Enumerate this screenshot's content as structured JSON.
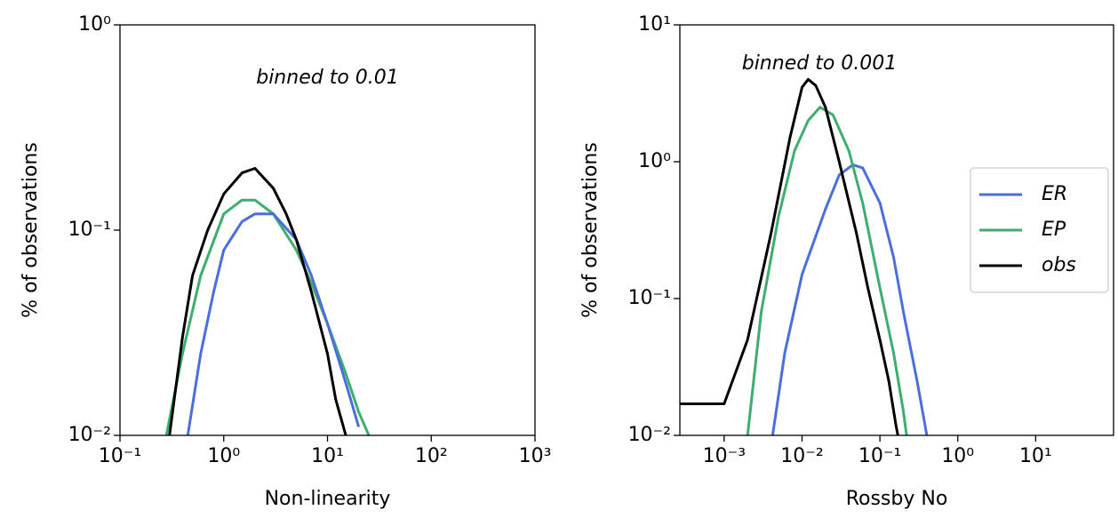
{
  "chart_data": [
    {
      "type": "line",
      "annotation": "binned to 0.01",
      "xlabel": "Non-linearity",
      "ylabel": "% of observations",
      "xscale": "log",
      "yscale": "log",
      "grid": false,
      "xlim": [
        0.1,
        1000
      ],
      "ylim": [
        0.01,
        1
      ],
      "xticks": [
        {
          "value": 0.1,
          "label": "10⁻¹"
        },
        {
          "value": 1,
          "label": "10⁰"
        },
        {
          "value": 10,
          "label": "10¹"
        },
        {
          "value": 100,
          "label": "10²"
        },
        {
          "value": 1000,
          "label": "10³"
        }
      ],
      "yticks": [
        {
          "value": 0.01,
          "label": "10⁻²"
        },
        {
          "value": 0.1,
          "label": "10⁻¹"
        },
        {
          "value": 1,
          "label": "10⁰"
        }
      ],
      "series": [
        {
          "color": "#3dae6e",
          "x": [
            0.28,
            0.4,
            0.6,
            1,
            1.5,
            2,
            3,
            5,
            7,
            10,
            15,
            20,
            25
          ],
          "values": [
            0.01,
            0.025,
            0.06,
            0.12,
            0.14,
            0.14,
            0.12,
            0.08,
            0.055,
            0.035,
            0.02,
            0.013,
            0.01
          ]
        },
        {
          "color": "#4a6fdc",
          "x": [
            0.45,
            0.6,
            0.8,
            1,
            1.5,
            2,
            3,
            5,
            7,
            10,
            15,
            20
          ],
          "values": [
            0.01,
            0.025,
            0.05,
            0.08,
            0.11,
            0.12,
            0.12,
            0.09,
            0.06,
            0.035,
            0.018,
            0.011
          ]
        },
        {
          "color": "#000000",
          "x": [
            0.3,
            0.4,
            0.5,
            0.7,
            1,
            1.5,
            2,
            3,
            4,
            5,
            7,
            10,
            12,
            15
          ],
          "values": [
            0.01,
            0.03,
            0.06,
            0.1,
            0.15,
            0.19,
            0.2,
            0.16,
            0.12,
            0.09,
            0.05,
            0.025,
            0.015,
            0.01
          ]
        }
      ]
    },
    {
      "type": "line",
      "annotation": "binned to 0.001",
      "xlabel": "Rossby No",
      "ylabel": "% of observations",
      "xscale": "log",
      "yscale": "log",
      "grid": false,
      "legend": "center right",
      "xlim": [
        0.00027,
        100
      ],
      "ylim": [
        0.01,
        10
      ],
      "xticks": [
        {
          "value": 0.001,
          "label": "10⁻³"
        },
        {
          "value": 0.01,
          "label": "10⁻²"
        },
        {
          "value": 0.1,
          "label": "10⁻¹"
        },
        {
          "value": 1,
          "label": "10⁰"
        },
        {
          "value": 10,
          "label": "10¹"
        }
      ],
      "yticks": [
        {
          "value": 0.01,
          "label": "10⁻²"
        },
        {
          "value": 0.1,
          "label": "10⁻¹"
        },
        {
          "value": 1,
          "label": "10⁰"
        },
        {
          "value": 10,
          "label": "10¹"
        }
      ],
      "series": [
        {
          "name": "ER",
          "color": "#4a6fdc",
          "x": [
            0.0042,
            0.006,
            0.01,
            0.02,
            0.03,
            0.045,
            0.06,
            0.1,
            0.15,
            0.2,
            0.3,
            0.4
          ],
          "values": [
            0.01,
            0.04,
            0.15,
            0.45,
            0.8,
            0.95,
            0.9,
            0.5,
            0.2,
            0.08,
            0.025,
            0.01
          ]
        },
        {
          "name": "EP",
          "color": "#3dae6e",
          "x": [
            0.002,
            0.003,
            0.005,
            0.008,
            0.012,
            0.017,
            0.025,
            0.04,
            0.06,
            0.1,
            0.15,
            0.2,
            0.22
          ],
          "values": [
            0.01,
            0.08,
            0.4,
            1.2,
            2.0,
            2.5,
            2.2,
            1.2,
            0.5,
            0.12,
            0.04,
            0.015,
            0.01
          ]
        },
        {
          "name": "obs",
          "color": "#000000",
          "x": [
            0.00027,
            0.001,
            0.002,
            0.004,
            0.007,
            0.01,
            0.012,
            0.015,
            0.02,
            0.03,
            0.05,
            0.07,
            0.1,
            0.13,
            0.16,
            0.17
          ],
          "values": [
            0.017,
            0.017,
            0.05,
            0.3,
            1.5,
            3.5,
            4,
            3.6,
            2.5,
            1.0,
            0.3,
            0.12,
            0.05,
            0.025,
            0.012,
            0.01
          ]
        }
      ]
    }
  ]
}
